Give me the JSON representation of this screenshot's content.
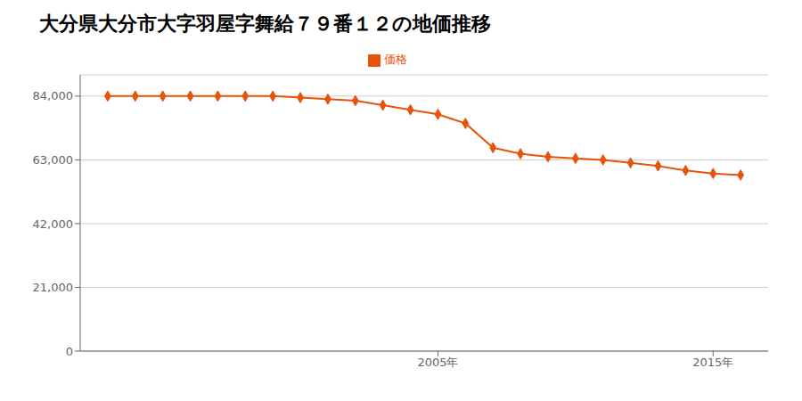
{
  "chart_data": {
    "type": "line",
    "title": "大分県大分市大字羽屋字舞給７９番１２の地価推移",
    "x": [
      1993,
      1994,
      1995,
      1996,
      1997,
      1998,
      1999,
      2000,
      2001,
      2002,
      2003,
      2004,
      2005,
      2006,
      2007,
      2008,
      2009,
      2010,
      2011,
      2012,
      2013,
      2014,
      2015,
      2016
    ],
    "series": [
      {
        "name": "価格",
        "color": "#e8530a",
        "marker": "diamond",
        "values": [
          84000,
          84000,
          84000,
          84000,
          84000,
          84000,
          84000,
          83500,
          83000,
          82500,
          81000,
          79500,
          78000,
          75000,
          67000,
          65000,
          64000,
          63500,
          63000,
          62000,
          61000,
          59500,
          58500,
          58000
        ]
      }
    ],
    "xlim": [
      1992,
      2017
    ],
    "xticks": [
      {
        "value": 2005,
        "label": "2005年"
      },
      {
        "value": 2015,
        "label": "2015年"
      }
    ],
    "ylim": [
      0,
      91000
    ],
    "yticks": [
      0,
      {
        "value": 21000,
        "label": "21,000"
      },
      {
        "value": 42000,
        "label": "42,000"
      },
      {
        "value": 63000,
        "label": "63,000"
      },
      {
        "value": 84000,
        "label": "84,000"
      }
    ],
    "grid": true,
    "legend": "top"
  }
}
